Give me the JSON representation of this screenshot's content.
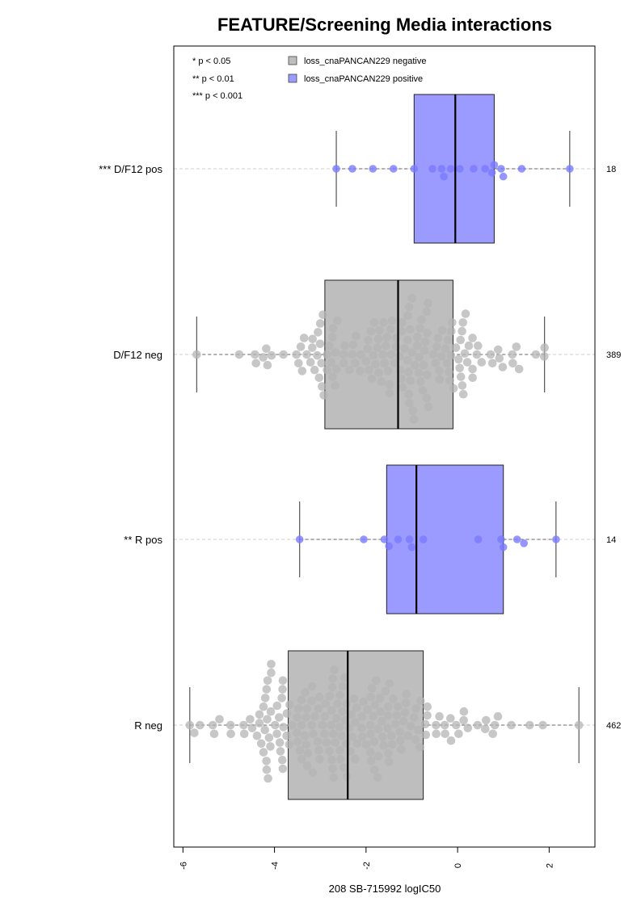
{
  "chart_data": {
    "type": "boxplot",
    "title": "FEATURE/Screening Media interactions",
    "xlabel": "208 SB-715992 logIC50",
    "xlim": [
      -6.2,
      3.0
    ],
    "xticks": [
      -6,
      -4,
      -2,
      0,
      2
    ],
    "xtick_labels": [
      "-6",
      "-4",
      "-2",
      "0",
      "2"
    ],
    "significance_legend": [
      "* p < 0.05",
      "** p < 0.01",
      "*** p < 0.001"
    ],
    "legend": [
      {
        "label": "loss_cnaPANCAN229 negative",
        "color": "#bebebe"
      },
      {
        "label": "loss_cnaPANCAN229 positive",
        "color": "#9a9aff"
      }
    ],
    "groups": [
      {
        "label": "*** D/F12 pos",
        "n": "18",
        "status": "positive",
        "stats": {
          "whisker_low": -2.65,
          "q1": -0.95,
          "median": -0.05,
          "q3": 0.8,
          "whisker_high": 2.45
        },
        "points": [
          -2.65,
          -2.3,
          -1.85,
          -1.4,
          -0.95,
          -0.55,
          -0.35,
          -0.15,
          0.05,
          0.35,
          0.6,
          0.75,
          0.95,
          1.4,
          2.45,
          -0.3,
          0.8,
          1.0
        ]
      },
      {
        "label": "D/F12 neg",
        "n": "389",
        "status": "negative",
        "stats": {
          "whisker_low": -5.7,
          "q1": -2.9,
          "median": -1.3,
          "q3": -0.1,
          "whisker_high": 1.9
        }
      },
      {
        "label": "** R pos",
        "n": "14",
        "status": "positive",
        "stats": {
          "whisker_low": -3.45,
          "q1": -1.55,
          "median": -0.9,
          "q3": 1.0,
          "whisker_high": 2.15
        },
        "points": [
          -3.45,
          -2.05,
          -1.6,
          -1.3,
          -1.05,
          -0.75,
          0.45,
          0.95,
          1.3,
          2.15,
          -1.5,
          -1.0,
          1.0,
          1.45
        ]
      },
      {
        "label": "R neg",
        "n": "462",
        "status": "negative",
        "stats": {
          "whisker_low": -5.85,
          "q1": -3.7,
          "median": -2.4,
          "q3": -0.75,
          "whisker_high": 2.65
        }
      }
    ]
  }
}
